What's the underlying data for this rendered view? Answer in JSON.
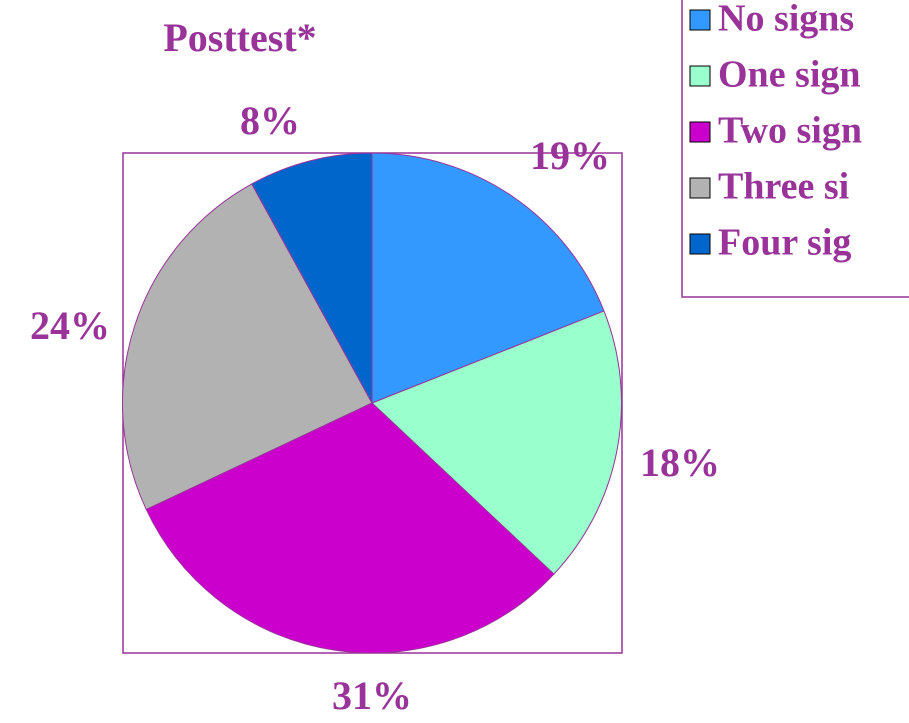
{
  "chart_data": {
    "type": "pie",
    "title": "Posttest*",
    "categories": [
      "No signs",
      "One sign",
      "Two sign",
      "Three si",
      "Four sig"
    ],
    "values": [
      19,
      18,
      31,
      24,
      8
    ],
    "value_labels": [
      "19%",
      "18%",
      "31%",
      "24%",
      "8%"
    ],
    "colors": [
      "#3399ff",
      "#99ffcc",
      "#cc00cc",
      "#b2b2b2",
      "#0066cc"
    ],
    "legend": "top-right"
  }
}
